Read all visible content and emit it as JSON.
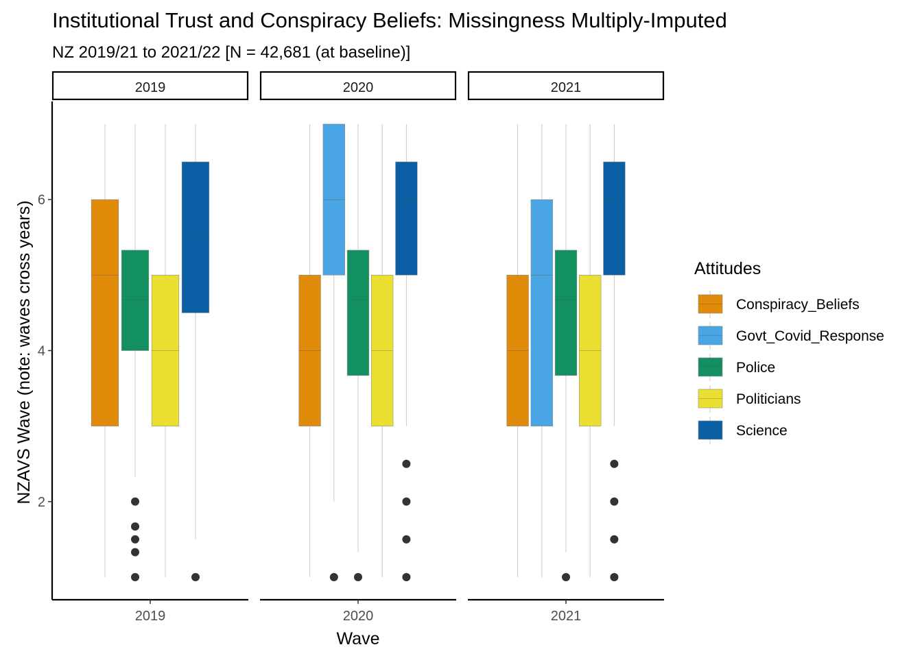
{
  "chart_data": {
    "type": "boxplot",
    "title": "Institutional Trust and Conspiracy Beliefs: Missingness Multiply-Imputed",
    "subtitle": "NZ 2019/21 to 2021/22 [N = 42,681 (at baseline)]",
    "xlabel": "Wave",
    "ylabel": "NZAVS Wave (note: waves cross years)",
    "ylim": [
      0.7,
      7.3
    ],
    "yticks": [
      2,
      4,
      6
    ],
    "legend_title": "Attitudes",
    "legend_position": "right",
    "grid": false,
    "notched": true,
    "series": [
      {
        "name": "Conspiracy_Beliefs",
        "color": "#E08B0A"
      },
      {
        "name": "Govt_Covid_Response",
        "color": "#49A5E3"
      },
      {
        "name": "Police",
        "color": "#13905F"
      },
      {
        "name": "Politicians",
        "color": "#EBE031"
      },
      {
        "name": "Science",
        "color": "#0A5FA5"
      }
    ],
    "panels": [
      {
        "strip": "2019",
        "x_tick": "2019",
        "boxes": [
          {
            "series": "Conspiracy_Beliefs",
            "whisker_low": 1,
            "q1": 3,
            "median": 5,
            "q3": 6,
            "whisker_high": 7,
            "outliers": []
          },
          {
            "series": "Police",
            "whisker_low": 2.33,
            "q1": 4,
            "median": 4.67,
            "q3": 5.33,
            "whisker_high": 7,
            "outliers": [
              2,
              1.67,
              1.5,
              1.33,
              1
            ]
          },
          {
            "series": "Politicians",
            "whisker_low": 1,
            "q1": 3,
            "median": 4,
            "q3": 5,
            "whisker_high": 7,
            "outliers": []
          },
          {
            "series": "Science",
            "whisker_low": 1.5,
            "q1": 4.5,
            "median": 5.5,
            "q3": 6.5,
            "whisker_high": 7,
            "outliers": [
              1
            ]
          }
        ]
      },
      {
        "strip": "2020",
        "x_tick": "2020",
        "boxes": [
          {
            "series": "Conspiracy_Beliefs",
            "whisker_low": 1,
            "q1": 3,
            "median": 4,
            "q3": 5,
            "whisker_high": 7,
            "outliers": []
          },
          {
            "series": "Govt_Covid_Response",
            "whisker_low": 2,
            "q1": 5,
            "median": 6,
            "q3": 7,
            "whisker_high": 7,
            "outliers": [
              1
            ]
          },
          {
            "series": "Police",
            "whisker_low": 1.33,
            "q1": 3.67,
            "median": 4.67,
            "q3": 5.33,
            "whisker_high": 7,
            "outliers": [
              1
            ]
          },
          {
            "series": "Politicians",
            "whisker_low": 1,
            "q1": 3,
            "median": 4,
            "q3": 5,
            "whisker_high": 7,
            "outliers": []
          },
          {
            "series": "Science",
            "whisker_low": 3,
            "q1": 5,
            "median": 6,
            "q3": 6.5,
            "whisker_high": 7,
            "outliers": [
              2.5,
              2,
              1.5,
              1
            ]
          }
        ]
      },
      {
        "strip": "2021",
        "x_tick": "2021",
        "boxes": [
          {
            "series": "Conspiracy_Beliefs",
            "whisker_low": 1,
            "q1": 3,
            "median": 4,
            "q3": 5,
            "whisker_high": 7,
            "outliers": []
          },
          {
            "series": "Govt_Covid_Response",
            "whisker_low": 1,
            "q1": 3,
            "median": 5,
            "q3": 6,
            "whisker_high": 7,
            "outliers": []
          },
          {
            "series": "Police",
            "whisker_low": 1.33,
            "q1": 3.67,
            "median": 4.67,
            "q3": 5.33,
            "whisker_high": 7,
            "outliers": [
              1
            ]
          },
          {
            "series": "Politicians",
            "whisker_low": 1,
            "q1": 3,
            "median": 4,
            "q3": 5,
            "whisker_high": 7,
            "outliers": []
          },
          {
            "series": "Science",
            "whisker_low": 3,
            "q1": 5,
            "median": 6,
            "q3": 6.5,
            "whisker_high": 7,
            "outliers": [
              2.5,
              2,
              1.5,
              1
            ]
          }
        ]
      }
    ]
  }
}
